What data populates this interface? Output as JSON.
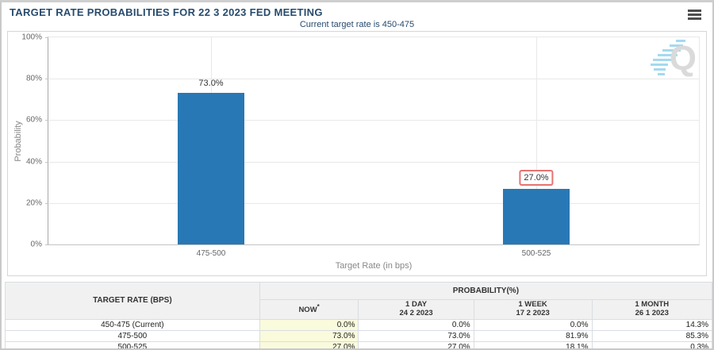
{
  "header": {
    "title": "TARGET RATE PROBABILITIES FOR 22 3 2023 FED MEETING"
  },
  "chart_data": {
    "type": "bar",
    "title": "TARGET RATE PROBABILITIES FOR 22 3 2023 FED MEETING",
    "subtitle": "Current target rate is 450-475",
    "categories": [
      "475-500",
      "500-525"
    ],
    "values": [
      73.0,
      27.0
    ],
    "bar_labels": [
      "73.0%",
      "27.0%"
    ],
    "highlighted_bar_index": 1,
    "xlabel": "Target Rate (in bps)",
    "ylabel": "Probability",
    "ylim": [
      0,
      100
    ],
    "yticks": [
      "100%",
      "80%",
      "60%",
      "40%",
      "20%",
      "0%"
    ],
    "grid": true,
    "legend_position": "none",
    "bar_color": "#2878b5",
    "highlight_box_color": "#e87272",
    "watermark": "Q"
  },
  "table": {
    "rate_col_header": "TARGET RATE (BPS)",
    "group_header": "PROBABILITY(%)",
    "now_note_mark": "*",
    "columns": [
      {
        "label": "NOW",
        "date": ""
      },
      {
        "label": "1 DAY",
        "date": "24 2 2023"
      },
      {
        "label": "1 WEEK",
        "date": "17 2 2023"
      },
      {
        "label": "1 MONTH",
        "date": "26 1 2023"
      }
    ],
    "rows": [
      {
        "rate": "450-475 (Current)",
        "now": "0.0%",
        "day": "0.0%",
        "week": "0.0%",
        "month": "14.3%"
      },
      {
        "rate": "475-500",
        "now": "73.0%",
        "day": "73.0%",
        "week": "81.9%",
        "month": "85.3%"
      },
      {
        "rate": "500-525",
        "now": "27.0%",
        "day": "27.0%",
        "week": "18.1%",
        "month": "0.3%"
      }
    ]
  },
  "colors": {
    "accent_navy": "#274b6d",
    "bar_blue": "#2878b5",
    "now_column_bg": "#fafadc",
    "highlight_red": "#e87272"
  }
}
